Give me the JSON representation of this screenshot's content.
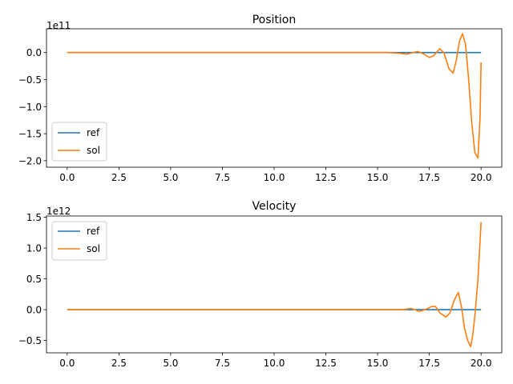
{
  "chart_data": [
    {
      "type": "line",
      "title": "Position",
      "xlabel": "",
      "ylabel": "",
      "offset_label": "1e11",
      "xlim": [
        -1.0,
        21.0
      ],
      "ylim": [
        -2.12,
        0.44
      ],
      "x_ticks": [
        0.0,
        2.5,
        5.0,
        7.5,
        10.0,
        12.5,
        15.0,
        17.5,
        20.0
      ],
      "x_tick_labels": [
        "0.0",
        "2.5",
        "5.0",
        "7.5",
        "10.0",
        "12.5",
        "15.0",
        "17.5",
        "20.0"
      ],
      "y_ticks": [
        0.0,
        -0.5,
        -1.0,
        -1.5,
        -2.0
      ],
      "y_tick_labels": [
        "0.0",
        "−0.5",
        "−1.0",
        "−1.5",
        "−2.0"
      ],
      "legend_position": "lower left",
      "grid": false,
      "series": [
        {
          "name": "ref",
          "color": "#1f77b4",
          "x": [
            0,
            20
          ],
          "y": [
            0,
            0
          ]
        },
        {
          "name": "sol",
          "color": "#ff7f0e",
          "x": [
            0,
            5,
            10,
            14,
            15.5,
            16.0,
            16.4,
            16.7,
            16.95,
            17.2,
            17.5,
            17.7,
            18.0,
            18.2,
            18.45,
            18.65,
            18.8,
            18.95,
            19.1,
            19.25,
            19.4,
            19.55,
            19.7,
            19.85,
            19.95,
            20.0
          ],
          "y": [
            0,
            0,
            0,
            0,
            0.0,
            -0.01,
            -0.03,
            0.0,
            0.02,
            -0.02,
            -0.09,
            -0.06,
            0.07,
            0.0,
            -0.3,
            -0.38,
            -0.15,
            0.2,
            0.35,
            0.15,
            -0.5,
            -1.3,
            -1.85,
            -1.95,
            -1.2,
            -0.18
          ]
        }
      ]
    },
    {
      "type": "line",
      "title": "Velocity",
      "xlabel": "",
      "ylabel": "",
      "offset_label": "1e12",
      "xlim": [
        -1.0,
        21.0
      ],
      "ylim": [
        -0.7,
        1.52
      ],
      "x_ticks": [
        0.0,
        2.5,
        5.0,
        7.5,
        10.0,
        12.5,
        15.0,
        17.5,
        20.0
      ],
      "x_tick_labels": [
        "0.0",
        "2.5",
        "5.0",
        "7.5",
        "10.0",
        "12.5",
        "15.0",
        "17.5",
        "20.0"
      ],
      "y_ticks": [
        1.5,
        1.0,
        0.5,
        0.0,
        -0.5
      ],
      "y_tick_labels": [
        "1.5",
        "1.0",
        "0.5",
        "0.0",
        "−0.5"
      ],
      "legend_position": "upper left",
      "grid": false,
      "series": [
        {
          "name": "ref",
          "color": "#1f77b4",
          "x": [
            0,
            20
          ],
          "y": [
            0,
            0
          ]
        },
        {
          "name": "sol",
          "color": "#ff7f0e",
          "x": [
            0,
            5,
            10,
            14,
            15.5,
            16.2,
            16.6,
            16.8,
            17.0,
            17.3,
            17.6,
            17.8,
            18.0,
            18.3,
            18.5,
            18.7,
            18.9,
            19.05,
            19.2,
            19.35,
            19.5,
            19.6,
            19.7,
            19.85,
            20.0
          ],
          "y": [
            0,
            0,
            0,
            0,
            0.0,
            0.0,
            0.02,
            0.0,
            -0.03,
            0.0,
            0.05,
            0.05,
            -0.05,
            -0.12,
            -0.05,
            0.15,
            0.28,
            0.05,
            -0.3,
            -0.5,
            -0.6,
            -0.4,
            -0.1,
            0.5,
            1.42
          ]
        }
      ]
    }
  ]
}
